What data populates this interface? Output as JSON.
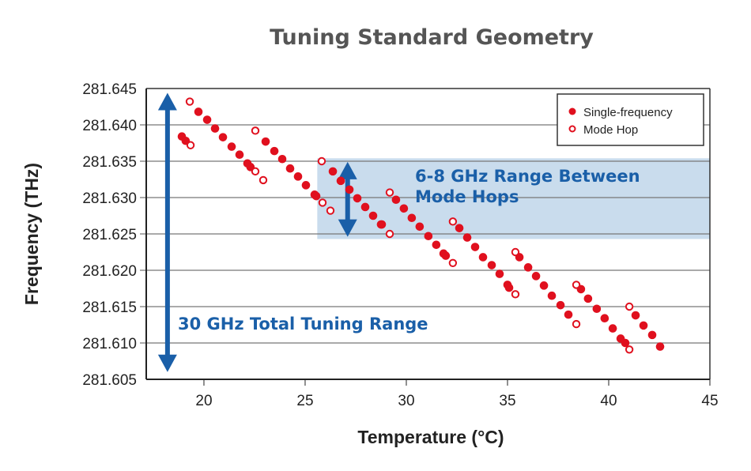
{
  "chart_data": {
    "type": "scatter",
    "title": "Tuning Standard Geometry",
    "xlabel": "Temperature (°C)",
    "ylabel": "Frequency (THz)",
    "xlim": [
      17.15,
      45
    ],
    "ylim": [
      281.605,
      281.645
    ],
    "xticks": [
      "20",
      "25",
      "30",
      "35",
      "40",
      "45"
    ],
    "yticks": [
      "281.645",
      "281.640",
      "281.635",
      "281.630",
      "281.625",
      "281.620",
      "281.615",
      "281.610",
      "281.605"
    ],
    "grid": "horizontal",
    "legend_position": "top-right",
    "colors": {
      "points": "#e0101e",
      "annotation": "#1a5fa8",
      "shade": "#c9dced"
    },
    "series": [
      {
        "name": "Single-frequency",
        "marker": "filled-circle",
        "points": [
          [
            18.91,
            281.6384
          ],
          [
            19.1,
            281.6378
          ],
          [
            19.73,
            281.6418
          ],
          [
            20.16,
            281.6407
          ],
          [
            20.55,
            281.6395
          ],
          [
            20.94,
            281.6383
          ],
          [
            21.37,
            281.637
          ],
          [
            21.76,
            281.6359
          ],
          [
            22.15,
            281.6347
          ],
          [
            22.3,
            281.6342
          ],
          [
            23.05,
            281.6377
          ],
          [
            23.48,
            281.6364
          ],
          [
            23.87,
            281.6353
          ],
          [
            24.26,
            281.634
          ],
          [
            24.65,
            281.6329
          ],
          [
            25.04,
            281.6317
          ],
          [
            25.47,
            281.6304
          ],
          [
            25.55,
            281.6302
          ],
          [
            26.37,
            281.6336
          ],
          [
            26.76,
            281.6323
          ],
          [
            27.19,
            281.6311
          ],
          [
            27.58,
            281.6299
          ],
          [
            27.97,
            281.6287
          ],
          [
            28.36,
            281.6275
          ],
          [
            28.75,
            281.6263
          ],
          [
            28.79,
            281.6263
          ],
          [
            29.49,
            281.6297
          ],
          [
            29.88,
            281.6285
          ],
          [
            30.27,
            281.6272
          ],
          [
            30.66,
            281.626
          ],
          [
            31.09,
            281.6247
          ],
          [
            31.48,
            281.6235
          ],
          [
            31.84,
            281.6223
          ],
          [
            31.95,
            281.622
          ],
          [
            32.62,
            281.6258
          ],
          [
            33.01,
            281.6245
          ],
          [
            33.4,
            281.6232
          ],
          [
            33.79,
            281.6218
          ],
          [
            34.22,
            281.6207
          ],
          [
            34.61,
            281.6195
          ],
          [
            35.0,
            281.618
          ],
          [
            35.08,
            281.6176
          ],
          [
            35.59,
            281.6218
          ],
          [
            36.02,
            281.6204
          ],
          [
            36.41,
            281.6192
          ],
          [
            36.8,
            281.6179
          ],
          [
            37.19,
            281.6165
          ],
          [
            37.62,
            281.6152
          ],
          [
            38.01,
            281.6139
          ],
          [
            38.63,
            281.6174
          ],
          [
            38.98,
            281.6161
          ],
          [
            39.41,
            281.6147
          ],
          [
            39.8,
            281.6134
          ],
          [
            40.2,
            281.612
          ],
          [
            40.59,
            281.6106
          ],
          [
            40.82,
            281.61
          ],
          [
            41.33,
            281.6138
          ],
          [
            41.72,
            281.6124
          ],
          [
            42.15,
            281.6111
          ],
          [
            42.54,
            281.6095
          ]
        ]
      },
      {
        "name": "Mode Hop",
        "marker": "open-circle",
        "points": [
          [
            19.34,
            281.6372
          ],
          [
            19.3,
            281.6432
          ],
          [
            22.54,
            281.6336
          ],
          [
            22.93,
            281.6324
          ],
          [
            22.54,
            281.6392
          ],
          [
            25.86,
            281.6293
          ],
          [
            26.25,
            281.6282
          ],
          [
            25.82,
            281.635
          ],
          [
            29.18,
            281.625
          ],
          [
            29.18,
            281.6307
          ],
          [
            32.3,
            281.621
          ],
          [
            32.3,
            281.6267
          ],
          [
            35.39,
            281.6167
          ],
          [
            35.39,
            281.6225
          ],
          [
            38.4,
            281.6126
          ],
          [
            38.4,
            281.618
          ],
          [
            41.02,
            281.6091
          ],
          [
            41.02,
            281.615
          ]
        ]
      }
    ],
    "annotations": {
      "shaded_region": {
        "x": [
          25.6,
          45
        ],
        "y": [
          281.6243,
          281.6354
        ]
      },
      "range_arrow": {
        "x": 27.1,
        "y": [
          281.6349,
          281.6246
        ]
      },
      "range_label": [
        "6-8 GHz Range Between",
        "Mode Hops"
      ],
      "total_arrow": {
        "x": 18.2,
        "y": [
          281.6444,
          281.606
        ]
      },
      "total_label": "30 GHz Total Tuning Range"
    }
  }
}
